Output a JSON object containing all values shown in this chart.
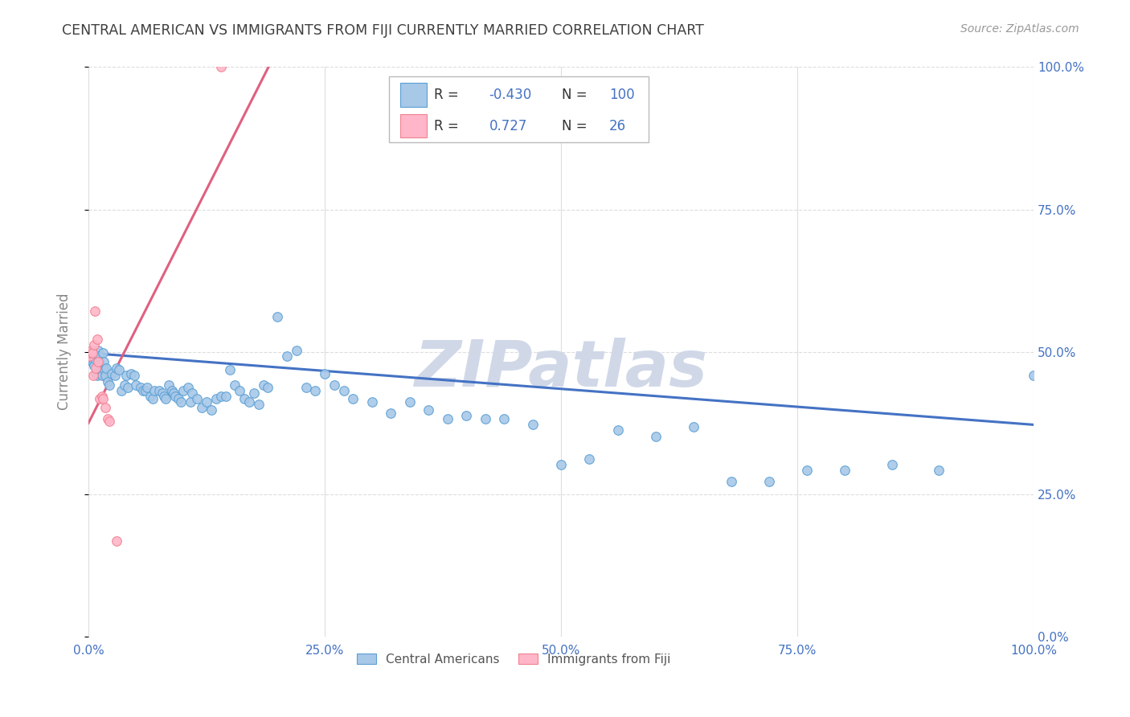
{
  "title": "CENTRAL AMERICAN VS IMMIGRANTS FROM FIJI CURRENTLY MARRIED CORRELATION CHART",
  "source": "Source: ZipAtlas.com",
  "ylabel": "Currently Married",
  "watermark": "ZIPatlas",
  "blue_R": -0.43,
  "blue_N": 100,
  "pink_R": 0.727,
  "pink_N": 26,
  "blue_color": "#a8c8e8",
  "pink_color": "#ffb6c8",
  "blue_edge_color": "#5a9fd4",
  "pink_edge_color": "#f08090",
  "blue_line_color": "#4472c4",
  "pink_line_color": "#e06080",
  "title_color": "#404040",
  "source_color": "#999999",
  "axis_tick_color": "#4472c4",
  "ylabel_color": "#888888",
  "grid_color": "#dddddd",
  "watermark_color": "#d0d8e8",
  "xlim": [
    0.0,
    1.0
  ],
  "ylim": [
    0.0,
    1.0
  ],
  "blue_scatter": [
    [
      0.001,
      0.485
    ],
    [
      0.002,
      0.495
    ],
    [
      0.003,
      0.5
    ],
    [
      0.004,
      0.49
    ],
    [
      0.005,
      0.48
    ],
    [
      0.006,
      0.475
    ],
    [
      0.007,
      0.488
    ],
    [
      0.008,
      0.462
    ],
    [
      0.009,
      0.458
    ],
    [
      0.01,
      0.502
    ],
    [
      0.011,
      0.492
    ],
    [
      0.012,
      0.478
    ],
    [
      0.013,
      0.462
    ],
    [
      0.014,
      0.458
    ],
    [
      0.015,
      0.498
    ],
    [
      0.016,
      0.482
    ],
    [
      0.017,
      0.468
    ],
    [
      0.018,
      0.458
    ],
    [
      0.019,
      0.472
    ],
    [
      0.02,
      0.448
    ],
    [
      0.022,
      0.442
    ],
    [
      0.025,
      0.462
    ],
    [
      0.028,
      0.458
    ],
    [
      0.03,
      0.472
    ],
    [
      0.032,
      0.468
    ],
    [
      0.035,
      0.432
    ],
    [
      0.038,
      0.442
    ],
    [
      0.04,
      0.458
    ],
    [
      0.042,
      0.438
    ],
    [
      0.045,
      0.462
    ],
    [
      0.048,
      0.458
    ],
    [
      0.05,
      0.442
    ],
    [
      0.055,
      0.438
    ],
    [
      0.058,
      0.432
    ],
    [
      0.06,
      0.432
    ],
    [
      0.062,
      0.438
    ],
    [
      0.065,
      0.422
    ],
    [
      0.068,
      0.418
    ],
    [
      0.07,
      0.432
    ],
    [
      0.075,
      0.432
    ],
    [
      0.078,
      0.428
    ],
    [
      0.08,
      0.422
    ],
    [
      0.082,
      0.418
    ],
    [
      0.085,
      0.442
    ],
    [
      0.088,
      0.432
    ],
    [
      0.09,
      0.428
    ],
    [
      0.092,
      0.422
    ],
    [
      0.095,
      0.418
    ],
    [
      0.098,
      0.412
    ],
    [
      0.1,
      0.432
    ],
    [
      0.105,
      0.438
    ],
    [
      0.108,
      0.412
    ],
    [
      0.11,
      0.428
    ],
    [
      0.115,
      0.418
    ],
    [
      0.12,
      0.402
    ],
    [
      0.125,
      0.412
    ],
    [
      0.13,
      0.398
    ],
    [
      0.135,
      0.418
    ],
    [
      0.14,
      0.422
    ],
    [
      0.145,
      0.422
    ],
    [
      0.15,
      0.468
    ],
    [
      0.155,
      0.442
    ],
    [
      0.16,
      0.432
    ],
    [
      0.165,
      0.418
    ],
    [
      0.17,
      0.412
    ],
    [
      0.175,
      0.428
    ],
    [
      0.18,
      0.408
    ],
    [
      0.185,
      0.442
    ],
    [
      0.19,
      0.438
    ],
    [
      0.2,
      0.562
    ],
    [
      0.21,
      0.492
    ],
    [
      0.22,
      0.502
    ],
    [
      0.23,
      0.438
    ],
    [
      0.24,
      0.432
    ],
    [
      0.25,
      0.462
    ],
    [
      0.26,
      0.442
    ],
    [
      0.27,
      0.432
    ],
    [
      0.28,
      0.418
    ],
    [
      0.3,
      0.412
    ],
    [
      0.32,
      0.392
    ],
    [
      0.34,
      0.412
    ],
    [
      0.36,
      0.398
    ],
    [
      0.38,
      0.382
    ],
    [
      0.4,
      0.388
    ],
    [
      0.42,
      0.382
    ],
    [
      0.44,
      0.382
    ],
    [
      0.47,
      0.372
    ],
    [
      0.5,
      0.302
    ],
    [
      0.53,
      0.312
    ],
    [
      0.56,
      0.362
    ],
    [
      0.6,
      0.352
    ],
    [
      0.64,
      0.368
    ],
    [
      0.68,
      0.272
    ],
    [
      0.72,
      0.272
    ],
    [
      0.76,
      0.292
    ],
    [
      0.8,
      0.292
    ],
    [
      0.85,
      0.302
    ],
    [
      0.9,
      0.292
    ],
    [
      1.0,
      0.458
    ]
  ],
  "pink_scatter": [
    [
      0.001,
      0.492
    ],
    [
      0.002,
      0.498
    ],
    [
      0.003,
      0.502
    ],
    [
      0.004,
      0.498
    ],
    [
      0.005,
      0.458
    ],
    [
      0.006,
      0.512
    ],
    [
      0.007,
      0.572
    ],
    [
      0.008,
      0.472
    ],
    [
      0.009,
      0.522
    ],
    [
      0.01,
      0.482
    ],
    [
      0.012,
      0.418
    ],
    [
      0.014,
      0.422
    ],
    [
      0.015,
      0.418
    ],
    [
      0.018,
      0.402
    ],
    [
      0.02,
      0.382
    ],
    [
      0.022,
      0.378
    ],
    [
      0.03,
      0.168
    ],
    [
      0.14,
      1.0
    ]
  ],
  "blue_trend": [
    0.0,
    1.0,
    0.498,
    0.372
  ],
  "pink_trend": [
    0.0,
    0.195,
    0.375,
    1.015
  ],
  "yticks": [
    0.0,
    0.25,
    0.5,
    0.75,
    1.0
  ],
  "ytick_labels_right": [
    "0.0%",
    "25.0%",
    "50.0%",
    "75.0%",
    "100.0%"
  ],
  "xticks": [
    0.0,
    0.25,
    0.5,
    0.75,
    1.0
  ],
  "xtick_labels": [
    "0.0%",
    "25.0%",
    "50.0%",
    "75.0%",
    "100.0%"
  ],
  "legend_bottom_labels": [
    "Central Americans",
    "Immigrants from Fiji"
  ]
}
